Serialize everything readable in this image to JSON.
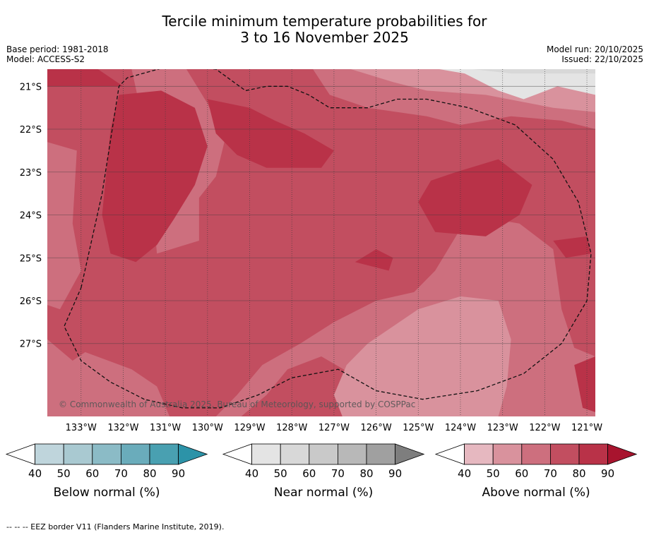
{
  "title_line1": "Tercile minimum temperature probabilities for",
  "title_line2": "3 to 16 November 2025",
  "meta_left": {
    "base_period": "Base period: 1981-2018",
    "model": "Model: ACCESS-S2"
  },
  "meta_right": {
    "model_run": "Model run: 20/10/2025",
    "issued": "Issued: 22/10/2025"
  },
  "copyright": "© Commonwealth of Australia 2025, Bureau of Meteorology, supported by COSPPac",
  "footer": "--  --  -- EEZ border V11 (Flanders Marine Institute, 2019).",
  "colors": {
    "above": [
      "#e6b8c0",
      "#d9929d",
      "#cd6f7e",
      "#c24e60",
      "#b93248",
      "#a8142e"
    ],
    "near": [
      "#e4e4e4",
      "#d8d8d8",
      "#c9c9c9",
      "#b8b8b8",
      "#a0a0a0",
      "#7e7e7e"
    ],
    "below": [
      "#bfd5dc",
      "#a9c9d1",
      "#8bbbc6",
      "#6aacbb",
      "#49a0b1",
      "#2c93a8"
    ],
    "grid": "#3b3b3b"
  },
  "chart_data": {
    "type": "heatmap",
    "xlim": [
      -133.8,
      -120.8
    ],
    "ylim": [
      -28.7,
      -20.6
    ],
    "x_ticks": [
      -133,
      -132,
      -131,
      -130,
      -129,
      -128,
      -127,
      -126,
      -125,
      -124,
      -123,
      -122,
      -121
    ],
    "x_tick_labels": [
      "133°W",
      "132°W",
      "131°W",
      "130°W",
      "129°W",
      "128°W",
      "127°W",
      "126°W",
      "125°W",
      "124°W",
      "123°W",
      "122°W",
      "121°W"
    ],
    "y_ticks": [
      -21,
      -22,
      -23,
      -24,
      -25,
      -26,
      -27
    ],
    "y_tick_labels": [
      "21°S",
      "22°S",
      "23°S",
      "24°S",
      "25°S",
      "26°S",
      "27°S"
    ],
    "regions": [
      {
        "category": "above",
        "level": "70-80",
        "polygon": [
          [
            -133.8,
            -20.6
          ],
          [
            -120.8,
            -20.6
          ],
          [
            -120.8,
            -28.7
          ],
          [
            -133.8,
            -28.7
          ]
        ]
      },
      {
        "category": "above",
        "level": "60-70",
        "polygon": [
          [
            -133.8,
            -22.3
          ],
          [
            -133.1,
            -22.5
          ],
          [
            -133.2,
            -24.2
          ],
          [
            -133.0,
            -25.3
          ],
          [
            -133.5,
            -26.2
          ],
          [
            -133.8,
            -26.1
          ]
        ]
      },
      {
        "category": "above",
        "level": "60-70",
        "polygon": [
          [
            -133.8,
            -26.9
          ],
          [
            -133.2,
            -27.4
          ],
          [
            -132.9,
            -27.2
          ],
          [
            -131.8,
            -27.6
          ],
          [
            -131.2,
            -28.0
          ],
          [
            -130.9,
            -28.7
          ],
          [
            -133.8,
            -28.7
          ]
        ]
      },
      {
        "category": "above",
        "level": "60-70",
        "polygon": [
          [
            -131.8,
            -20.6
          ],
          [
            -130.5,
            -20.6
          ],
          [
            -130.0,
            -21.4
          ],
          [
            -129.6,
            -22.3
          ],
          [
            -129.8,
            -23.1
          ],
          [
            -130.2,
            -23.6
          ],
          [
            -130.2,
            -24.6
          ],
          [
            -131.2,
            -24.9
          ],
          [
            -131.3,
            -23.8
          ],
          [
            -131.3,
            -22.5
          ],
          [
            -131.6,
            -21.5
          ]
        ]
      },
      {
        "category": "above",
        "level": "60-70",
        "polygon": [
          [
            -123.8,
            -24.0
          ],
          [
            -122.6,
            -24.2
          ],
          [
            -121.8,
            -24.8
          ],
          [
            -121.6,
            -26.2
          ],
          [
            -121.3,
            -27.1
          ],
          [
            -120.8,
            -27.3
          ],
          [
            -120.8,
            -28.7
          ],
          [
            -125.5,
            -28.7
          ],
          [
            -126.0,
            -28.4
          ],
          [
            -126.6,
            -27.7
          ],
          [
            -127.3,
            -27.3
          ],
          [
            -128.1,
            -27.6
          ],
          [
            -128.6,
            -28.2
          ],
          [
            -129.2,
            -28.7
          ],
          [
            -129.8,
            -28.7
          ],
          [
            -129.3,
            -28.2
          ],
          [
            -128.7,
            -27.5
          ],
          [
            -127.8,
            -27.0
          ],
          [
            -127.0,
            -26.5
          ],
          [
            -126.0,
            -26.0
          ],
          [
            -125.1,
            -25.8
          ],
          [
            -124.6,
            -25.3
          ]
        ]
      },
      {
        "category": "above",
        "level": "50-60",
        "polygon": [
          [
            -126.2,
            -27.0
          ],
          [
            -125.0,
            -26.2
          ],
          [
            -124.0,
            -25.9
          ],
          [
            -123.1,
            -26.0
          ],
          [
            -122.8,
            -26.9
          ],
          [
            -122.9,
            -28.0
          ],
          [
            -123.1,
            -28.7
          ],
          [
            -126.8,
            -28.7
          ],
          [
            -127.0,
            -28.2
          ],
          [
            -126.7,
            -27.5
          ]
        ]
      },
      {
        "category": "above",
        "level": "80-90",
        "polygon": [
          [
            -132.1,
            -21.2
          ],
          [
            -131.1,
            -21.1
          ],
          [
            -130.3,
            -21.5
          ],
          [
            -130.0,
            -22.4
          ],
          [
            -130.3,
            -23.3
          ],
          [
            -130.8,
            -24.1
          ],
          [
            -131.2,
            -24.7
          ],
          [
            -131.7,
            -25.1
          ],
          [
            -132.3,
            -24.9
          ],
          [
            -132.5,
            -24.0
          ],
          [
            -132.4,
            -23.0
          ],
          [
            -132.3,
            -22.0
          ]
        ]
      },
      {
        "category": "above",
        "level": "80-90",
        "polygon": [
          [
            -130.0,
            -21.3
          ],
          [
            -129.0,
            -21.5
          ],
          [
            -128.4,
            -21.8
          ],
          [
            -127.7,
            -22.1
          ],
          [
            -127.0,
            -22.5
          ],
          [
            -127.3,
            -22.9
          ],
          [
            -128.6,
            -22.9
          ],
          [
            -129.3,
            -22.6
          ],
          [
            -129.8,
            -22.1
          ]
        ]
      },
      {
        "category": "above",
        "level": "80-90",
        "polygon": [
          [
            -133.8,
            -20.6
          ],
          [
            -132.6,
            -20.6
          ],
          [
            -132.0,
            -21.0
          ],
          [
            -133.0,
            -21.0
          ],
          [
            -133.8,
            -21.0
          ]
        ]
      },
      {
        "category": "above",
        "level": "80-90",
        "polygon": [
          [
            -124.1,
            -23.0
          ],
          [
            -123.1,
            -22.7
          ],
          [
            -122.3,
            -23.3
          ],
          [
            -122.6,
            -24.0
          ],
          [
            -123.4,
            -24.5
          ],
          [
            -124.6,
            -24.4
          ],
          [
            -125.0,
            -23.7
          ],
          [
            -124.7,
            -23.2
          ]
        ]
      },
      {
        "category": "above",
        "level": "80-90",
        "polygon": [
          [
            -126.0,
            -24.8
          ],
          [
            -125.6,
            -25.0
          ],
          [
            -125.7,
            -25.3
          ],
          [
            -126.5,
            -25.1
          ]
        ]
      },
      {
        "category": "above",
        "level": "80-90",
        "polygon": [
          [
            -121.8,
            -24.6
          ],
          [
            -121.0,
            -24.5
          ],
          [
            -120.9,
            -24.9
          ],
          [
            -121.5,
            -25.0
          ]
        ]
      },
      {
        "category": "above",
        "level": "80-90",
        "polygon": [
          [
            -121.3,
            -27.5
          ],
          [
            -120.8,
            -27.3
          ],
          [
            -120.8,
            -28.6
          ],
          [
            -121.1,
            -28.5
          ]
        ]
      },
      {
        "category": "above",
        "level": "60-70",
        "polygon": [
          [
            -127.5,
            -20.6
          ],
          [
            -124.2,
            -20.6
          ],
          [
            -123.0,
            -21.0
          ],
          [
            -122.0,
            -21.3
          ],
          [
            -121.0,
            -21.3
          ],
          [
            -120.8,
            -21.3
          ],
          [
            -120.8,
            -22.0
          ],
          [
            -121.6,
            -21.8
          ],
          [
            -122.8,
            -21.7
          ],
          [
            -124.0,
            -21.9
          ],
          [
            -124.8,
            -21.7
          ],
          [
            -126.2,
            -21.5
          ],
          [
            -127.1,
            -21.2
          ]
        ]
      },
      {
        "category": "above",
        "level": "50-60",
        "polygon": [
          [
            -126.6,
            -20.6
          ],
          [
            -120.8,
            -20.6
          ],
          [
            -120.8,
            -21.6
          ],
          [
            -121.8,
            -21.5
          ],
          [
            -123.4,
            -21.2
          ],
          [
            -124.8,
            -21.1
          ],
          [
            -125.6,
            -20.9
          ]
        ]
      },
      {
        "category": "near",
        "level": "40-50",
        "polygon": [
          [
            -125.0,
            -20.6
          ],
          [
            -120.8,
            -20.6
          ],
          [
            -120.8,
            -21.2
          ],
          [
            -121.7,
            -21.0
          ],
          [
            -122.5,
            -21.3
          ],
          [
            -123.1,
            -21.1
          ],
          [
            -123.9,
            -20.7
          ],
          [
            -124.5,
            -20.6
          ]
        ]
      },
      {
        "category": "near",
        "level": "50-60",
        "polygon": [
          [
            -123.7,
            -20.6
          ],
          [
            -120.8,
            -20.6
          ],
          [
            -120.8,
            -20.7
          ],
          [
            -122.0,
            -20.7
          ],
          [
            -122.8,
            -20.7
          ]
        ]
      }
    ],
    "dashed_line_label": "EEZ border",
    "eez_border": [
      [
        -133.0,
        -25.7
      ],
      [
        -132.5,
        -23.5
      ],
      [
        -132.1,
        -21.0
      ],
      [
        -131.9,
        -20.8
      ],
      [
        -130.8,
        -20.5
      ],
      [
        -129.8,
        -20.6
      ],
      [
        -129.1,
        -21.1
      ],
      [
        -128.6,
        -21.0
      ],
      [
        -128.1,
        -21.0
      ],
      [
        -127.6,
        -21.2
      ],
      [
        -127.1,
        -21.5
      ],
      [
        -126.2,
        -21.5
      ],
      [
        -125.5,
        -21.3
      ],
      [
        -124.8,
        -21.3
      ],
      [
        -123.8,
        -21.5
      ],
      [
        -122.7,
        -21.9
      ],
      [
        -121.8,
        -22.7
      ],
      [
        -121.2,
        -23.7
      ],
      [
        -120.9,
        -24.9
      ],
      [
        -121.0,
        -26.0
      ],
      [
        -121.6,
        -27.0
      ],
      [
        -122.5,
        -27.7
      ],
      [
        -123.6,
        -28.1
      ],
      [
        -124.9,
        -28.3
      ],
      [
        -126.0,
        -28.1
      ],
      [
        -126.9,
        -27.6
      ],
      [
        -128.0,
        -27.8
      ],
      [
        -128.8,
        -28.2
      ],
      [
        -129.7,
        -28.5
      ],
      [
        -130.6,
        -28.5
      ],
      [
        -131.5,
        -28.3
      ],
      [
        -132.3,
        -27.9
      ],
      [
        -133.0,
        -27.4
      ],
      [
        -133.4,
        -26.6
      ],
      [
        -133.0,
        -25.7
      ]
    ],
    "colorbars": [
      {
        "category": "below",
        "label": "Below normal (%)",
        "ticks": [
          "40",
          "50",
          "60",
          "70",
          "80",
          "90"
        ]
      },
      {
        "category": "near",
        "label": "Near normal (%)",
        "ticks": [
          "40",
          "50",
          "60",
          "70",
          "80",
          "90"
        ]
      },
      {
        "category": "above",
        "label": "Above normal (%)",
        "ticks": [
          "40",
          "50",
          "60",
          "70",
          "80",
          "90"
        ]
      }
    ]
  }
}
